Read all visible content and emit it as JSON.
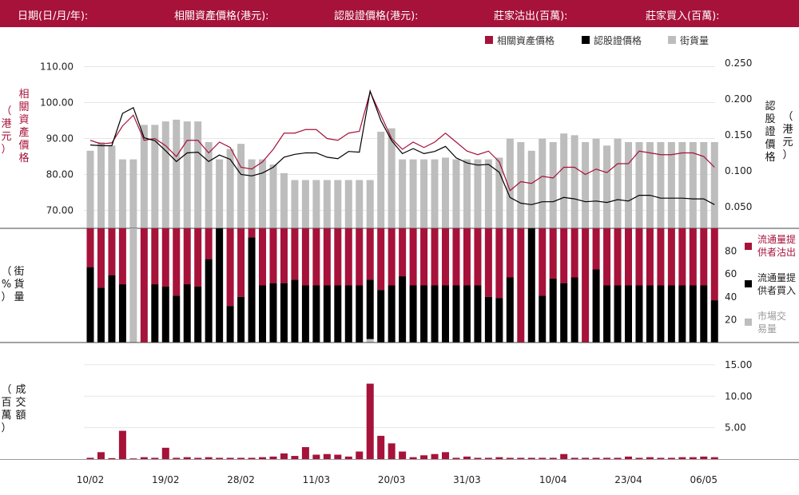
{
  "header": {
    "date_label": "日期(日/月/年):",
    "asset_label": "相關資產價格(港元):",
    "warrant_label": "認股證價格(港元):",
    "sold_label": "莊家沽出(百萬):",
    "bought_label": "莊家買入(百萬):"
  },
  "colors": {
    "red": "#a6123a",
    "black": "#000000",
    "gray": "#bdbdbd"
  },
  "chart_data": [
    {
      "type": "line",
      "legend": [
        "相關資產價格",
        "認股證價格",
        "街貨量"
      ],
      "left_axis_label": "相關資產價格（港元）",
      "right_axis_label": "認股證價格（港元）",
      "left_ticks": [
        "70.00",
        "80.00",
        "90.00",
        "100.00",
        "110.00"
      ],
      "left_tick_values": [
        70,
        80,
        90,
        100,
        110
      ],
      "left_range": [
        65,
        113
      ],
      "right_ticks": [
        "0.050",
        "0.100",
        "0.150",
        "0.200",
        "0.250"
      ],
      "right_tick_values": [
        0.05,
        0.1,
        0.15,
        0.2,
        0.25
      ],
      "right_range": [
        0.02,
        0.26
      ],
      "asset_price": [
        89.5,
        88.5,
        88.8,
        93.5,
        96.5,
        89.5,
        90,
        88,
        85,
        89.5,
        89.5,
        86,
        89,
        87.5,
        82,
        81.5,
        83.5,
        87,
        91.5,
        91.5,
        92.5,
        92.5,
        90,
        89.5,
        91.5,
        92,
        103,
        96.5,
        90,
        87,
        89,
        87.5,
        89,
        91.5,
        89,
        86.5,
        85.5,
        86.5,
        83.5,
        75.5,
        78,
        77.5,
        79.5,
        79,
        82,
        82,
        80,
        81.5,
        80.5,
        83,
        83,
        86.5,
        86,
        85.5,
        85.5,
        86,
        86,
        85,
        82
      ],
      "warrant_price": [
        0.136,
        0.135,
        0.135,
        0.18,
        0.188,
        0.146,
        0.142,
        0.128,
        0.113,
        0.125,
        0.126,
        0.113,
        0.122,
        0.116,
        0.095,
        0.093,
        0.097,
        0.105,
        0.119,
        0.123,
        0.125,
        0.125,
        0.119,
        0.117,
        0.127,
        0.126,
        0.211,
        0.17,
        0.142,
        0.124,
        0.131,
        0.124,
        0.127,
        0.134,
        0.118,
        0.111,
        0.108,
        0.109,
        0.098,
        0.063,
        0.055,
        0.053,
        0.057,
        0.057,
        0.063,
        0.061,
        0.057,
        0.058,
        0.056,
        0.06,
        0.058,
        0.066,
        0.066,
        0.062,
        0.062,
        0.062,
        0.061,
        0.061,
        0.053
      ],
      "street_volume_pct": [
        45,
        50,
        48,
        40,
        40,
        60,
        60,
        62,
        63,
        62,
        62,
        50,
        40,
        46,
        49,
        40,
        40,
        37,
        32,
        28,
        28,
        28,
        28,
        28,
        28,
        28,
        28,
        56,
        58,
        40,
        40,
        40,
        40,
        41,
        40,
        40,
        40,
        40,
        41,
        52,
        50,
        45,
        52,
        50,
        55,
        54,
        50,
        52,
        48,
        52,
        50,
        50,
        50,
        50,
        50,
        50,
        50,
        50,
        50
      ]
    },
    {
      "type": "bar",
      "left_axis_label": "街貨量（%）",
      "right_ticks": [
        "20",
        "40",
        "60",
        "80"
      ],
      "right_tick_values": [
        20,
        40,
        60,
        80
      ],
      "legend": [
        "流通量提供者沽出",
        "流通量提供者買入",
        "市場交易量"
      ],
      "lp_bought_pct": [
        66,
        48,
        59,
        51,
        0,
        0,
        51,
        49,
        41,
        51,
        49,
        73,
        100,
        32,
        40,
        92,
        50,
        52,
        52,
        55,
        50,
        50,
        50,
        50,
        50,
        50,
        52,
        46,
        50,
        58,
        50,
        50,
        50,
        50,
        50,
        50,
        50,
        40,
        39,
        57,
        0,
        100,
        41,
        56,
        52,
        57,
        0,
        64,
        50,
        50,
        50,
        50,
        50,
        50,
        50,
        50,
        50,
        50,
        37
      ],
      "lp_sold_pct": [
        34,
        52,
        41,
        49,
        0,
        100,
        49,
        51,
        59,
        49,
        51,
        27,
        0,
        68,
        60,
        8,
        50,
        48,
        48,
        45,
        50,
        50,
        50,
        50,
        50,
        50,
        45,
        54,
        50,
        42,
        50,
        50,
        50,
        50,
        50,
        50,
        50,
        60,
        61,
        43,
        100,
        0,
        59,
        44,
        48,
        43,
        100,
        36,
        50,
        50,
        50,
        50,
        50,
        50,
        50,
        50,
        50,
        50,
        63
      ],
      "market_pct": [
        0,
        0,
        0,
        0,
        100,
        0,
        0,
        0,
        0,
        0,
        0,
        0,
        0,
        0,
        0,
        0,
        0,
        0,
        0,
        0,
        0,
        0,
        0,
        0,
        0,
        0,
        3,
        0,
        0,
        0,
        0,
        0,
        0,
        0,
        0,
        0,
        0,
        0,
        0,
        0,
        0,
        0,
        0,
        0,
        0,
        0,
        0,
        0,
        0,
        0,
        0,
        0,
        0,
        0,
        0,
        0,
        0,
        0,
        0
      ]
    },
    {
      "type": "bar",
      "left_axis_label": "成交額（百萬）",
      "right_ticks": [
        "5.00",
        "10.00",
        "15.00"
      ],
      "right_tick_values": [
        5,
        10,
        15
      ],
      "ylim": [
        0,
        15.5
      ],
      "turnover": [
        0.2,
        1.1,
        0.15,
        4.5,
        0.1,
        0.3,
        0.2,
        1.8,
        0.2,
        0.3,
        0.2,
        0.3,
        0.2,
        0.2,
        0.2,
        0.2,
        0.3,
        0.4,
        0.9,
        0.5,
        1.9,
        0.7,
        0.8,
        0.7,
        0.4,
        1.2,
        12,
        3.7,
        2.5,
        1.2,
        0.3,
        0.6,
        0.8,
        1.1,
        0.2,
        0.4,
        0.2,
        0.2,
        0.3,
        0.2,
        0.2,
        0.2,
        0.2,
        0.2,
        0.8,
        0.2,
        0.2,
        0.2,
        0.2,
        0.2,
        0.4,
        0.2,
        0.3,
        0.2,
        0.2,
        0.3,
        0.3,
        0.4,
        0.3
      ],
      "x_tick_labels": [
        "10/02",
        "19/02",
        "28/02",
        "11/03",
        "20/03",
        "31/03",
        "10/04",
        "23/04",
        "06/05"
      ],
      "x_tick_index": [
        0,
        7,
        14,
        21,
        28,
        35,
        43,
        50,
        57
      ]
    }
  ]
}
